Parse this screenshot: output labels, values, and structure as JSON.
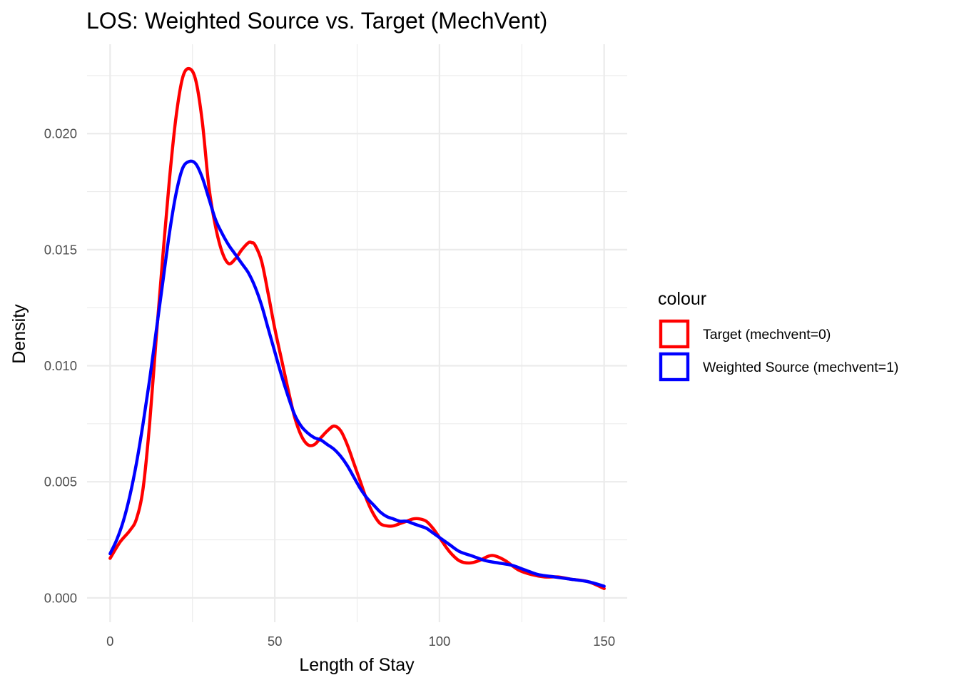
{
  "chart_data": {
    "type": "line",
    "title": "LOS: Weighted Source vs. Target (MechVent)",
    "xlabel": "Length of Stay",
    "ylabel": "Density",
    "xlim": [
      -7,
      157
    ],
    "ylim": [
      -0.00105,
      0.02385
    ],
    "x_ticks": [
      0,
      50,
      100,
      150
    ],
    "x_tick_labels": [
      "0",
      "50",
      "100",
      "150"
    ],
    "y_ticks": [
      0.0,
      0.005,
      0.01,
      0.015,
      0.02
    ],
    "y_tick_labels": [
      "0.000",
      "0.005",
      "0.010",
      "0.015",
      "0.020"
    ],
    "grid": true,
    "legend": {
      "title": "colour",
      "position": "right",
      "entries": [
        {
          "label": "Target (mechvent=0)",
          "color": "#ff0000"
        },
        {
          "label": "Weighted Source (mechvent=1)",
          "color": "#0000ff"
        }
      ]
    },
    "series": [
      {
        "name": "Target (mechvent=0)",
        "color": "#ff0000",
        "x": [
          0,
          3,
          6,
          8,
          10,
          12,
          14,
          16,
          18,
          20,
          22,
          24,
          26,
          28,
          30,
          32,
          34,
          36,
          38,
          40,
          42,
          43,
          44,
          46,
          48,
          50,
          52,
          54,
          56,
          58,
          60,
          62,
          64,
          66,
          68,
          70,
          72,
          74,
          76,
          78,
          80,
          82,
          84,
          86,
          88,
          90,
          92,
          94,
          96,
          98,
          100,
          103,
          106,
          109,
          112,
          115,
          117,
          120,
          124,
          128,
          132,
          136,
          140,
          145,
          150
        ],
        "y": [
          0.0017,
          0.0024,
          0.0029,
          0.0034,
          0.0047,
          0.0075,
          0.0112,
          0.0147,
          0.018,
          0.0207,
          0.0224,
          0.0228,
          0.0223,
          0.0205,
          0.0177,
          0.016,
          0.0149,
          0.0144,
          0.0146,
          0.015,
          0.0153,
          0.0153,
          0.0152,
          0.0145,
          0.0131,
          0.0116,
          0.0103,
          0.009,
          0.0078,
          0.007,
          0.0066,
          0.0066,
          0.0069,
          0.0072,
          0.0074,
          0.0072,
          0.0066,
          0.0058,
          0.005,
          0.0042,
          0.0036,
          0.0032,
          0.0031,
          0.0031,
          0.0032,
          0.0033,
          0.0034,
          0.0034,
          0.0033,
          0.003,
          0.0026,
          0.002,
          0.0016,
          0.0015,
          0.0016,
          0.0018,
          0.0018,
          0.0016,
          0.0012,
          0.001,
          0.0009,
          0.0009,
          0.0008,
          0.0007,
          0.0004
        ]
      },
      {
        "name": "Weighted Source (mechvent=1)",
        "color": "#0000ff",
        "x": [
          0,
          2,
          4,
          6,
          8,
          10,
          12,
          14,
          16,
          18,
          20,
          22,
          24,
          26,
          28,
          30,
          32,
          34,
          36,
          38,
          40,
          42,
          44,
          46,
          48,
          50,
          52,
          54,
          56,
          58,
          60,
          62,
          64,
          66,
          68,
          70,
          72,
          74,
          76,
          78,
          80,
          82,
          84,
          86,
          88,
          90,
          92,
          94,
          96,
          98,
          100,
          103,
          106,
          110,
          114,
          118,
          122,
          126,
          130,
          135,
          140,
          145,
          150
        ],
        "y": [
          0.0019,
          0.0025,
          0.0033,
          0.0044,
          0.0058,
          0.0075,
          0.0094,
          0.0115,
          0.0136,
          0.0157,
          0.0174,
          0.0185,
          0.0188,
          0.0187,
          0.0181,
          0.0172,
          0.0163,
          0.0157,
          0.0152,
          0.0148,
          0.0144,
          0.014,
          0.0134,
          0.0126,
          0.0116,
          0.0106,
          0.0096,
          0.0087,
          0.0079,
          0.0074,
          0.0071,
          0.0069,
          0.0068,
          0.0066,
          0.0064,
          0.0061,
          0.0057,
          0.0052,
          0.0047,
          0.0043,
          0.004,
          0.0037,
          0.0035,
          0.0034,
          0.0033,
          0.0033,
          0.0032,
          0.0031,
          0.003,
          0.0028,
          0.0026,
          0.0023,
          0.002,
          0.0018,
          0.0016,
          0.0015,
          0.0014,
          0.0012,
          0.001,
          0.0009,
          0.0008,
          0.0007,
          0.0005
        ]
      }
    ]
  }
}
